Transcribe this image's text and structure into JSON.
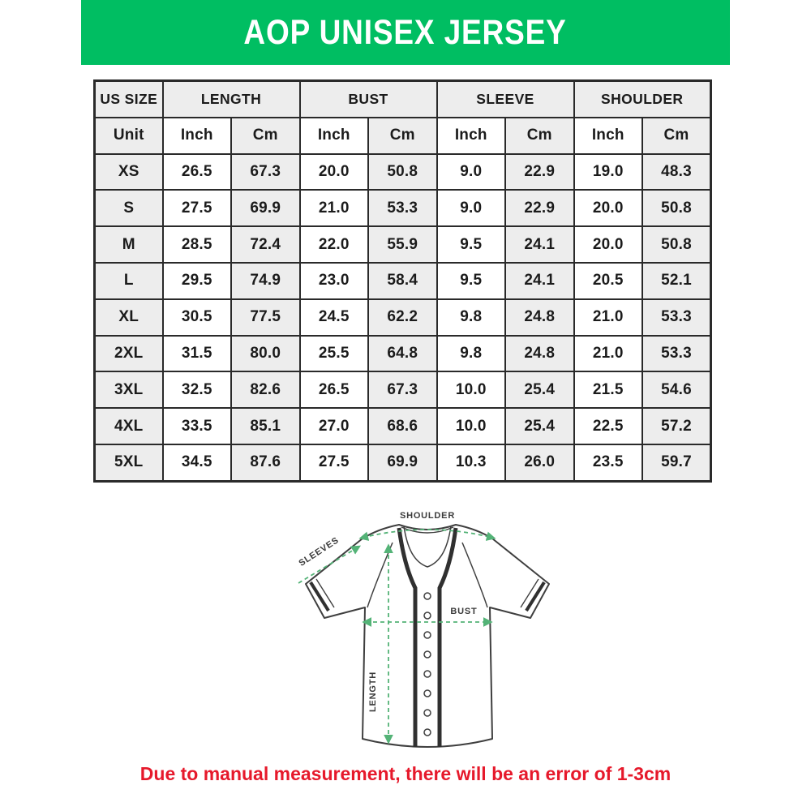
{
  "colors": {
    "brand_green": "#00BE62",
    "arrow_green": "#54B377",
    "note_red": "#E6192B"
  },
  "header": {
    "title": "AOP UNISEX JERSEY"
  },
  "size_chart": {
    "group_headers": [
      {
        "label": "US SIZE",
        "span": 1
      },
      {
        "label": "LENGTH",
        "span": 2
      },
      {
        "label": "BUST",
        "span": 2
      },
      {
        "label": "SLEEVE",
        "span": 2
      },
      {
        "label": "SHOULDER",
        "span": 2
      }
    ],
    "unit_row": [
      "Unit",
      "Inch",
      "Cm",
      "Inch",
      "Cm",
      "Inch",
      "Cm",
      "Inch",
      "Cm"
    ],
    "rows": [
      {
        "size": "XS",
        "values": [
          "26.5",
          "67.3",
          "20.0",
          "50.8",
          "9.0",
          "22.9",
          "19.0",
          "48.3"
        ]
      },
      {
        "size": "S",
        "values": [
          "27.5",
          "69.9",
          "21.0",
          "53.3",
          "9.0",
          "22.9",
          "20.0",
          "50.8"
        ]
      },
      {
        "size": "M",
        "values": [
          "28.5",
          "72.4",
          "22.0",
          "55.9",
          "9.5",
          "24.1",
          "20.0",
          "50.8"
        ]
      },
      {
        "size": "L",
        "values": [
          "29.5",
          "74.9",
          "23.0",
          "58.4",
          "9.5",
          "24.1",
          "20.5",
          "52.1"
        ]
      },
      {
        "size": "XL",
        "values": [
          "30.5",
          "77.5",
          "24.5",
          "62.2",
          "9.8",
          "24.8",
          "21.0",
          "53.3"
        ]
      },
      {
        "size": "2XL",
        "values": [
          "31.5",
          "80.0",
          "25.5",
          "64.8",
          "9.8",
          "24.8",
          "21.0",
          "53.3"
        ]
      },
      {
        "size": "3XL",
        "values": [
          "32.5",
          "82.6",
          "26.5",
          "67.3",
          "10.0",
          "25.4",
          "21.5",
          "54.6"
        ]
      },
      {
        "size": "4XL",
        "values": [
          "33.5",
          "85.1",
          "27.0",
          "68.6",
          "10.0",
          "25.4",
          "22.5",
          "57.2"
        ]
      },
      {
        "size": "5XL",
        "values": [
          "34.5",
          "87.6",
          "27.5",
          "69.9",
          "10.3",
          "26.0",
          "23.5",
          "59.7"
        ]
      }
    ]
  },
  "diagram": {
    "labels": {
      "shoulder": "SHOULDER",
      "sleeves": "SLEEVES",
      "bust": "BUST",
      "length": "LENGTH"
    }
  },
  "footnote": {
    "text": "Due to manual measurement, there will be an error of 1-3cm"
  }
}
